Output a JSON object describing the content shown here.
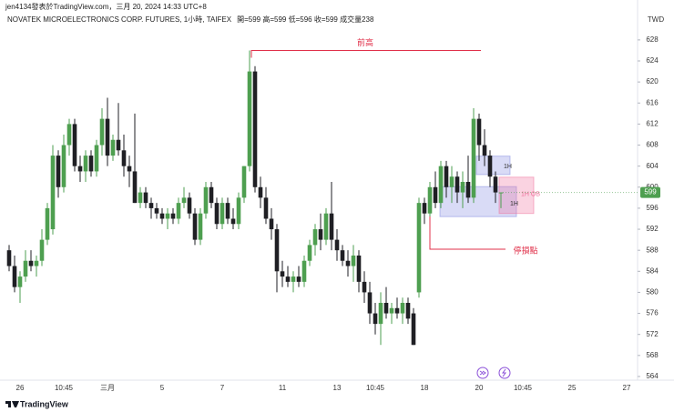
{
  "header": {
    "attribution": "jen4134發表於TradingView.com，三月 20, 2024 14:33 UTC+8",
    "footer": "TradingView"
  },
  "chart_data": {
    "type": "candlestick",
    "title": "NOVATEK MICROELECTRONICS CORP. FUTURES, 1小時, TAIFEX",
    "subtitle": "開=599 高=599 低=596 收=599 成交量238",
    "currency": "TWD",
    "categories": [
      null,
      null,
      "26",
      null,
      null,
      null,
      null,
      null,
      null,
      null,
      "10:45",
      null,
      null,
      null,
      null,
      null,
      null,
      null,
      "三月",
      null,
      null,
      null,
      null,
      null,
      null,
      null,
      null,
      null,
      "5",
      null,
      null,
      null,
      null,
      null,
      null,
      null,
      null,
      null,
      null,
      "7",
      null,
      null,
      null,
      null,
      null,
      null,
      null,
      null,
      null,
      null,
      "11",
      null,
      null,
      null,
      null,
      null,
      null,
      null,
      null,
      null,
      "13",
      null,
      null,
      null,
      null,
      null,
      null,
      "10:45",
      null,
      null,
      null,
      null,
      null,
      null,
      null,
      null,
      "18",
      null,
      null,
      null,
      null,
      null,
      null,
      null,
      null,
      null,
      "20",
      null,
      null,
      null,
      null,
      null,
      null,
      null,
      "10:45",
      null,
      null,
      null,
      null,
      null,
      null,
      null,
      null,
      "25",
      null,
      null,
      null,
      null,
      null,
      null,
      null,
      null,
      null,
      "27"
    ],
    "open": [
      588,
      585,
      581,
      583,
      586,
      585,
      586,
      590,
      592,
      606,
      600,
      608,
      612,
      604,
      603,
      606,
      603,
      608,
      613,
      606,
      609,
      607,
      604,
      603,
      597,
      599,
      597,
      596,
      595,
      594,
      595,
      594,
      597,
      598,
      595,
      590,
      595,
      600,
      597,
      593,
      597,
      594,
      593,
      598,
      604,
      622,
      600,
      598,
      594,
      592,
      584,
      583,
      582,
      583,
      582,
      586,
      589,
      592,
      590,
      595,
      590,
      588,
      586,
      585,
      587,
      582,
      580,
      576,
      574,
      578,
      576,
      577,
      576,
      578,
      576,
      580,
      597,
      595,
      600,
      597,
      604,
      600,
      602,
      599,
      601,
      598,
      613,
      608,
      606,
      602,
      599,
      null,
      null,
      null,
      null,
      null,
      null,
      null,
      null,
      null,
      null,
      null,
      null,
      null,
      null,
      null,
      null,
      null,
      null,
      null,
      null,
      null,
      null,
      null
    ],
    "high": [
      589,
      587,
      584,
      588,
      588,
      587,
      592,
      597,
      608,
      607,
      610,
      613,
      613,
      606,
      607,
      607,
      609,
      615,
      617,
      610,
      616,
      610,
      606,
      614,
      600,
      600,
      598,
      597,
      596,
      596,
      596,
      598,
      600,
      599,
      596,
      596,
      601,
      601,
      598,
      598,
      598,
      596,
      599,
      604,
      626,
      623,
      602,
      600,
      596,
      593,
      586,
      585,
      584,
      585,
      587,
      590,
      593,
      595,
      596,
      601,
      592,
      589,
      588,
      589,
      588,
      584,
      582,
      578,
      580,
      581,
      578,
      579,
      579,
      579,
      577,
      598,
      598,
      601,
      603,
      605,
      605,
      604,
      603,
      603,
      606,
      615,
      614,
      611,
      607,
      603,
      599,
      null,
      null,
      null,
      null,
      null,
      null,
      null,
      null,
      null,
      null,
      null,
      null,
      null,
      null,
      null,
      null,
      null,
      null,
      null,
      null,
      null,
      null,
      null
    ],
    "low": [
      584,
      580,
      578,
      582,
      584,
      583,
      585,
      589,
      591,
      598,
      599,
      606,
      603,
      601,
      601,
      602,
      602,
      606,
      604,
      605,
      606,
      602,
      600,
      597,
      596,
      596,
      594,
      594,
      593,
      592,
      593,
      593,
      596,
      594,
      589,
      589,
      594,
      596,
      592,
      592,
      593,
      592,
      592,
      597,
      603,
      599,
      596,
      593,
      590,
      580,
      581,
      581,
      580,
      581,
      581,
      585,
      587,
      588,
      589,
      588,
      586,
      585,
      583,
      582,
      580,
      578,
      574,
      572,
      570,
      575,
      574,
      575,
      574,
      574,
      570,
      579,
      593,
      592,
      596,
      596,
      598,
      597,
      597,
      596,
      597,
      597,
      605,
      604,
      600,
      597,
      596,
      null,
      null,
      null,
      null,
      null,
      null,
      null,
      null,
      null,
      null,
      null,
      null,
      null,
      null,
      null,
      null,
      null,
      null,
      null,
      null,
      null,
      null,
      null
    ],
    "close": [
      585,
      581,
      583,
      586,
      585,
      586,
      590,
      596,
      606,
      600,
      608,
      612,
      604,
      603,
      606,
      603,
      608,
      613,
      606,
      609,
      607,
      604,
      603,
      597,
      599,
      597,
      596,
      595,
      594,
      595,
      594,
      597,
      598,
      595,
      590,
      595,
      600,
      597,
      593,
      597,
      594,
      593,
      598,
      604,
      622,
      600,
      598,
      594,
      592,
      584,
      583,
      582,
      583,
      582,
      586,
      589,
      592,
      590,
      595,
      590,
      588,
      586,
      585,
      587,
      582,
      580,
      576,
      574,
      578,
      576,
      577,
      576,
      578,
      575,
      570,
      597,
      595,
      600,
      597,
      604,
      600,
      602,
      599,
      601,
      598,
      613,
      608,
      606,
      602,
      599,
      599,
      null,
      null,
      null,
      null,
      null,
      null,
      null,
      null,
      null,
      null,
      null,
      null,
      null,
      null,
      null,
      null,
      null,
      null,
      null,
      null,
      null,
      null,
      null
    ],
    "up_color": "#4e9f50",
    "down_color": "#1f1f24",
    "last_price": 599,
    "last_price_color": "#4e9f50",
    "annotations": [
      {
        "text": "前高",
        "value": 626,
        "color": "#e0304a"
      },
      {
        "text": "停損點",
        "value": 588.2,
        "color": "#e0304a"
      }
    ],
    "zones": [
      {
        "label": "1H",
        "high": 605.9,
        "low": 602.4,
        "color": "#8088e0"
      },
      {
        "label": "1H",
        "high": 600.1,
        "low": 594.4,
        "color": "#8088e0"
      },
      {
        "label": "1H OB",
        "high": 601.9,
        "low": 595.0,
        "color": "#f06d9a"
      }
    ],
    "ylim": [
      563.3,
      630.4
    ],
    "yticks": [
      564,
      568,
      572,
      576,
      580,
      584,
      588,
      592,
      596,
      600,
      604,
      608,
      612,
      616,
      620,
      624,
      628
    ],
    "grid": false
  }
}
